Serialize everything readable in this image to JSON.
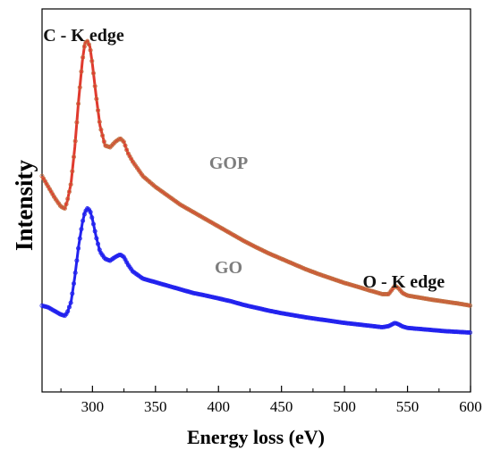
{
  "chart_data": {
    "type": "line",
    "title": "",
    "xlabel": "Energy loss (eV)",
    "ylabel": "Intensity",
    "xlim": [
      260,
      600
    ],
    "ylim": [
      0,
      1
    ],
    "xticks": [
      300,
      350,
      400,
      450,
      500,
      550,
      600
    ],
    "y_tick_labels": false,
    "grid": false,
    "legend": "none",
    "annotations": [
      {
        "text": "C - K edge",
        "x": 293,
        "y": 0.955
      },
      {
        "text": "GOP",
        "x": 408,
        "y": 0.6
      },
      {
        "text": "GO",
        "x": 408,
        "y": 0.31
      },
      {
        "text": "O - K edge",
        "x": 547,
        "y": 0.27
      }
    ],
    "series": [
      {
        "name": "GOP",
        "color": "#e03a2e",
        "marker": "circle-open",
        "marker_color": "#c07040",
        "x": [
          260,
          265,
          270,
          275,
          278,
          280,
          283,
          286,
          289,
          292,
          294,
          296,
          298,
          300,
          303,
          306,
          310,
          314,
          318,
          322,
          325,
          328,
          332,
          336,
          340,
          345,
          350,
          360,
          370,
          380,
          390,
          400,
          410,
          420,
          430,
          440,
          450,
          460,
          470,
          480,
          490,
          500,
          510,
          520,
          530,
          535,
          540,
          543,
          546,
          550,
          560,
          570,
          580,
          590,
          600
        ],
        "y": [
          0.58,
          0.55,
          0.52,
          0.495,
          0.49,
          0.51,
          0.56,
          0.66,
          0.79,
          0.9,
          0.95,
          0.955,
          0.94,
          0.89,
          0.8,
          0.72,
          0.665,
          0.66,
          0.675,
          0.685,
          0.675,
          0.645,
          0.62,
          0.6,
          0.58,
          0.565,
          0.55,
          0.525,
          0.5,
          0.48,
          0.46,
          0.44,
          0.42,
          0.4,
          0.382,
          0.365,
          0.35,
          0.335,
          0.32,
          0.307,
          0.295,
          0.283,
          0.273,
          0.262,
          0.252,
          0.252,
          0.275,
          0.268,
          0.255,
          0.248,
          0.242,
          0.236,
          0.231,
          0.226,
          0.22
        ]
      },
      {
        "name": "GO",
        "color": "#2222ee",
        "marker": "circle-open",
        "marker_color": "#2222ee",
        "x": [
          260,
          265,
          270,
          275,
          278,
          280,
          283,
          286,
          289,
          292,
          294,
          296,
          298,
          300,
          303,
          306,
          310,
          314,
          318,
          322,
          325,
          328,
          332,
          336,
          340,
          345,
          350,
          360,
          370,
          380,
          390,
          400,
          410,
          420,
          430,
          440,
          450,
          460,
          470,
          480,
          490,
          500,
          510,
          520,
          530,
          535,
          540,
          543,
          546,
          550,
          560,
          570,
          580,
          590,
          600
        ],
        "y": [
          0.22,
          0.215,
          0.205,
          0.195,
          0.192,
          0.2,
          0.23,
          0.3,
          0.385,
          0.45,
          0.48,
          0.49,
          0.485,
          0.46,
          0.41,
          0.37,
          0.35,
          0.345,
          0.355,
          0.362,
          0.355,
          0.335,
          0.315,
          0.305,
          0.295,
          0.29,
          0.285,
          0.275,
          0.265,
          0.255,
          0.248,
          0.24,
          0.232,
          0.222,
          0.214,
          0.206,
          0.199,
          0.193,
          0.187,
          0.182,
          0.177,
          0.172,
          0.168,
          0.164,
          0.16,
          0.163,
          0.172,
          0.168,
          0.162,
          0.158,
          0.155,
          0.152,
          0.149,
          0.147,
          0.145
        ]
      }
    ]
  }
}
